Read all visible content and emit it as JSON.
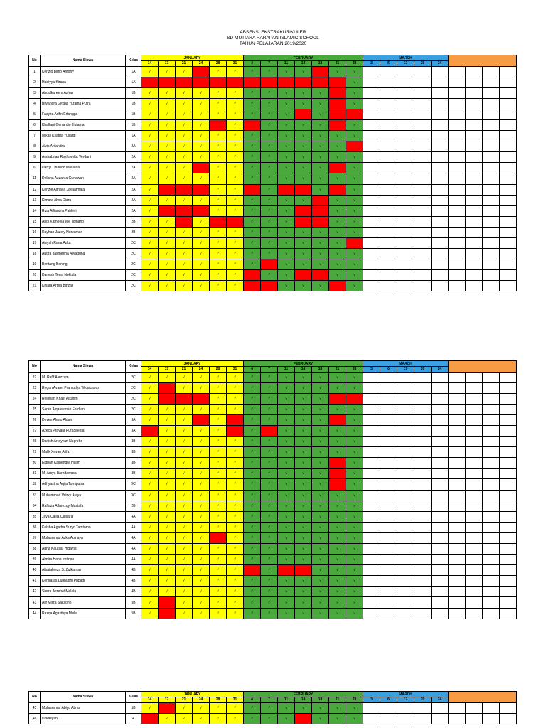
{
  "header": {
    "title": "ABSENSI EKSTRAKURIKULER",
    "school": "SD MUTIARA HARAPAN ISLAMIC SCHOOL",
    "year": "TAHUN PELAJARAN 2019/2020"
  },
  "columns": {
    "no": "No",
    "name": "Nama Siswa",
    "kelas": "Kelas",
    "months": [
      {
        "label": "JANUARY",
        "days": [
          "14",
          "17",
          "21",
          "24",
          "28",
          "31"
        ]
      },
      {
        "label": "FEBRUARY",
        "days": [
          "4",
          "7",
          "11",
          "14",
          "18",
          "21",
          "28"
        ]
      },
      {
        "label": "MARCH",
        "days": [
          "3",
          "6",
          "17",
          "20",
          "24"
        ]
      }
    ]
  },
  "check_mark": "√",
  "colors": {
    "january": "#ffff00",
    "february": "#4aa93d",
    "march": "#3aa0e0",
    "absent": "#ff0000",
    "extra": "#f59c45"
  },
  "sections": [
    {
      "students": [
        {
          "no": "1",
          "name": "Kenzio Bimo Antony",
          "kelas": "1A",
          "absent": [
            3,
            10
          ]
        },
        {
          "no": "2",
          "name": "Hadiyya Kirana",
          "kelas": "1A",
          "absent": [
            0,
            1,
            2,
            3,
            4,
            5,
            6,
            7,
            8,
            9,
            10,
            11
          ]
        },
        {
          "no": "3",
          "name": "Abdulkareem Azhar",
          "kelas": "1B",
          "absent": [
            11
          ]
        },
        {
          "no": "4",
          "name": "Bilyandra Gifkha Yurama Putra",
          "kelas": "1B",
          "absent": [
            11
          ]
        },
        {
          "no": "5",
          "name": "Faayza Arifin Erlangga",
          "kelas": "1B",
          "absent": [
            9,
            11,
            12
          ]
        },
        {
          "no": "6",
          "name": "Khalfani Gerrardio Hutama",
          "kelas": "1B",
          "absent": [
            4,
            6,
            11
          ]
        },
        {
          "no": "7",
          "name": "Mikail Ksatria Yuliardi",
          "kelas": "1A",
          "absent": []
        },
        {
          "no": "8",
          "name": "Alvis Arifandra",
          "kelas": "2A",
          "absent": [
            12
          ]
        },
        {
          "no": "9",
          "name": "Arshabrian Rakhavolta Verdani",
          "kelas": "2A",
          "absent": []
        },
        {
          "no": "10",
          "name": "Darryl Orlando Maulana",
          "kelas": "2A",
          "absent": [
            3,
            11
          ]
        },
        {
          "no": "11",
          "name": "Delisha Azzahra Gunawan",
          "kelas": "2A",
          "absent": []
        },
        {
          "no": "12",
          "name": "Kenzie Althaya Jayaatmaja",
          "kelas": "2A",
          "absent": [
            1,
            2,
            3,
            6,
            8,
            9,
            11
          ]
        },
        {
          "no": "13",
          "name": "Kimara Alwa Diaru",
          "kelas": "2A",
          "absent": [
            10
          ]
        },
        {
          "no": "14",
          "name": "Riza Alfiandra Pahlevi",
          "kelas": "2A",
          "absent": [
            1,
            2,
            3,
            9,
            10
          ]
        },
        {
          "no": "15",
          "name": "Andi Kameela We Tomario",
          "kelas": "2B",
          "absent": [
            2,
            4,
            5,
            9,
            10
          ]
        },
        {
          "no": "16",
          "name": "Rayhan Jazely Nurzaman",
          "kelas": "2B",
          "absent": []
        },
        {
          "no": "17",
          "name": "Aisyah Rana Azka",
          "kelas": "2C",
          "absent": [
            12
          ]
        },
        {
          "no": "18",
          "name": "Audra Jasmeena Aryaguna",
          "kelas": "2C",
          "absent": []
        },
        {
          "no": "19",
          "name": "Bentang Bening",
          "kelas": "2C",
          "absent": [
            7
          ]
        },
        {
          "no": "20",
          "name": "Danesh Terra Noktula",
          "kelas": "2C",
          "absent": [
            6,
            9,
            10
          ]
        },
        {
          "no": "21",
          "name": "Kinara Artilia Binzar",
          "kelas": "2C",
          "absent": [
            6,
            7,
            11
          ]
        }
      ]
    },
    {
      "students": [
        {
          "no": "22",
          "name": "M. Rafif Alazzam",
          "kelas": "2C",
          "absent": []
        },
        {
          "no": "23",
          "name": "Regan Avarel Pramudya Wicaksono",
          "kelas": "2C",
          "absent": [
            1
          ]
        },
        {
          "no": "24",
          "name": "Reinhart Khalif Alkarim",
          "kelas": "2C",
          "absent": [
            1,
            2,
            3,
            11,
            12
          ]
        },
        {
          "no": "25",
          "name": "Sarah Alqareemah Ferdian",
          "kelas": "2C",
          "absent": []
        },
        {
          "no": "26",
          "name": "Deven Alano Aldan",
          "kelas": "3A",
          "absent": [
            3,
            5,
            11
          ]
        },
        {
          "no": "27",
          "name": "Azeca Prayata Puradiredja",
          "kelas": "3A",
          "absent": [
            0,
            5,
            7
          ]
        },
        {
          "no": "28",
          "name": "Danish Arrayyan Nugroho",
          "kelas": "3B",
          "absent": []
        },
        {
          "no": "29",
          "name": "Malik Xavier Atifa",
          "kelas": "3B",
          "absent": []
        },
        {
          "no": "30",
          "name": "Eldrian Kainendra Halim",
          "kelas": "3B",
          "absent": [
            11
          ]
        },
        {
          "no": "31",
          "name": "M. Arsya Barndawasa",
          "kelas": "3B",
          "absent": [
            11
          ]
        },
        {
          "no": "32",
          "name": "Adhyastha Aqila Tomiputra",
          "kelas": "3C",
          "absent": [
            11
          ]
        },
        {
          "no": "33",
          "name": "Muhammad Vrizky Ataya",
          "kelas": "3C",
          "absent": []
        },
        {
          "no": "34",
          "name": "Raffaza Alfarezqy Mustafa",
          "kelas": "2B",
          "absent": []
        },
        {
          "no": "35",
          "name": "Java Calila Qaisara",
          "kelas": "4A",
          "absent": []
        },
        {
          "no": "36",
          "name": "Keisha Agatha Suryo Tamtomo",
          "kelas": "4A",
          "absent": []
        },
        {
          "no": "37",
          "name": "Muhammad Azka Abinaya",
          "kelas": "4A",
          "absent": [
            4
          ]
        },
        {
          "no": "38",
          "name": "Agha Kautsar Hidayat",
          "kelas": "4A",
          "absent": []
        },
        {
          "no": "39",
          "name": "Almira Hana Imtinan",
          "kelas": "4A",
          "absent": []
        },
        {
          "no": "40",
          "name": "Albataleeza S. Zulkarnain",
          "kelas": "4B",
          "absent": [
            6,
            8,
            9
          ]
        },
        {
          "no": "41",
          "name": "Keniraras Luhbudhi Pribadi",
          "kelas": "4B",
          "absent": []
        },
        {
          "no": "42",
          "name": "Sierra Jezebel Melala",
          "kelas": "4B",
          "absent": []
        },
        {
          "no": "43",
          "name": "Alif Mirza Saksono",
          "kelas": "5B",
          "absent": [
            1
          ]
        },
        {
          "no": "44",
          "name": "Razqa Agasthya Mulia",
          "kelas": "5B",
          "absent": [
            1
          ]
        }
      ]
    },
    {
      "students": [
        {
          "no": "45",
          "name": "Muhammad Abiyu Abrar",
          "kelas": "5B",
          "absent": [
            1
          ]
        },
        {
          "no": "46",
          "name": "Ukkasyah",
          "kelas": "4",
          "absent": [
            0,
            9
          ]
        }
      ]
    }
  ]
}
